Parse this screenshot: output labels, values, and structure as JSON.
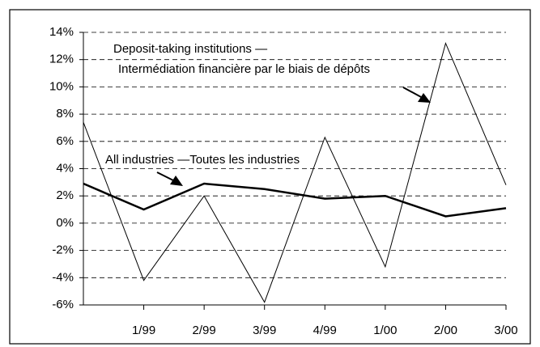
{
  "chart_data": {
    "type": "line",
    "categories": [
      null,
      "1/99",
      "2/99",
      "3/99",
      "4/99",
      "1/00",
      "2/00",
      "3/00"
    ],
    "series": [
      {
        "color": "#000000",
        "width": 1,
        "values": [
          7.4,
          -4.2,
          2.0,
          -5.8,
          6.3,
          -3.2,
          13.2,
          2.8
        ]
      },
      {
        "color": "#000000",
        "width": 2.5,
        "values": [
          2.9,
          1.0,
          2.9,
          2.5,
          1.8,
          2.0,
          0.5,
          1.1
        ]
      }
    ],
    "annotations": [
      {
        "lines": [
          "Deposit-taking institutions —",
          "Intermédiation financière par le biais de dépôts"
        ]
      },
      {
        "lines": [
          "All industries —Toutes les industries"
        ]
      }
    ],
    "ylim": [
      -6,
      14
    ],
    "yticks": [
      {
        "value": -6,
        "label": "-6%"
      },
      {
        "value": -4,
        "label": "-4%"
      },
      {
        "value": -2,
        "label": "-2%"
      },
      {
        "value": 0,
        "label": "0%"
      },
      {
        "value": 2,
        "label": "2%"
      },
      {
        "value": 4,
        "label": "4%"
      },
      {
        "value": 6,
        "label": "6%"
      },
      {
        "value": 8,
        "label": "8%"
      },
      {
        "value": 10,
        "label": "10%"
      },
      {
        "value": 12,
        "label": "12%"
      },
      {
        "value": 14,
        "label": "14%"
      }
    ],
    "grid": true
  }
}
